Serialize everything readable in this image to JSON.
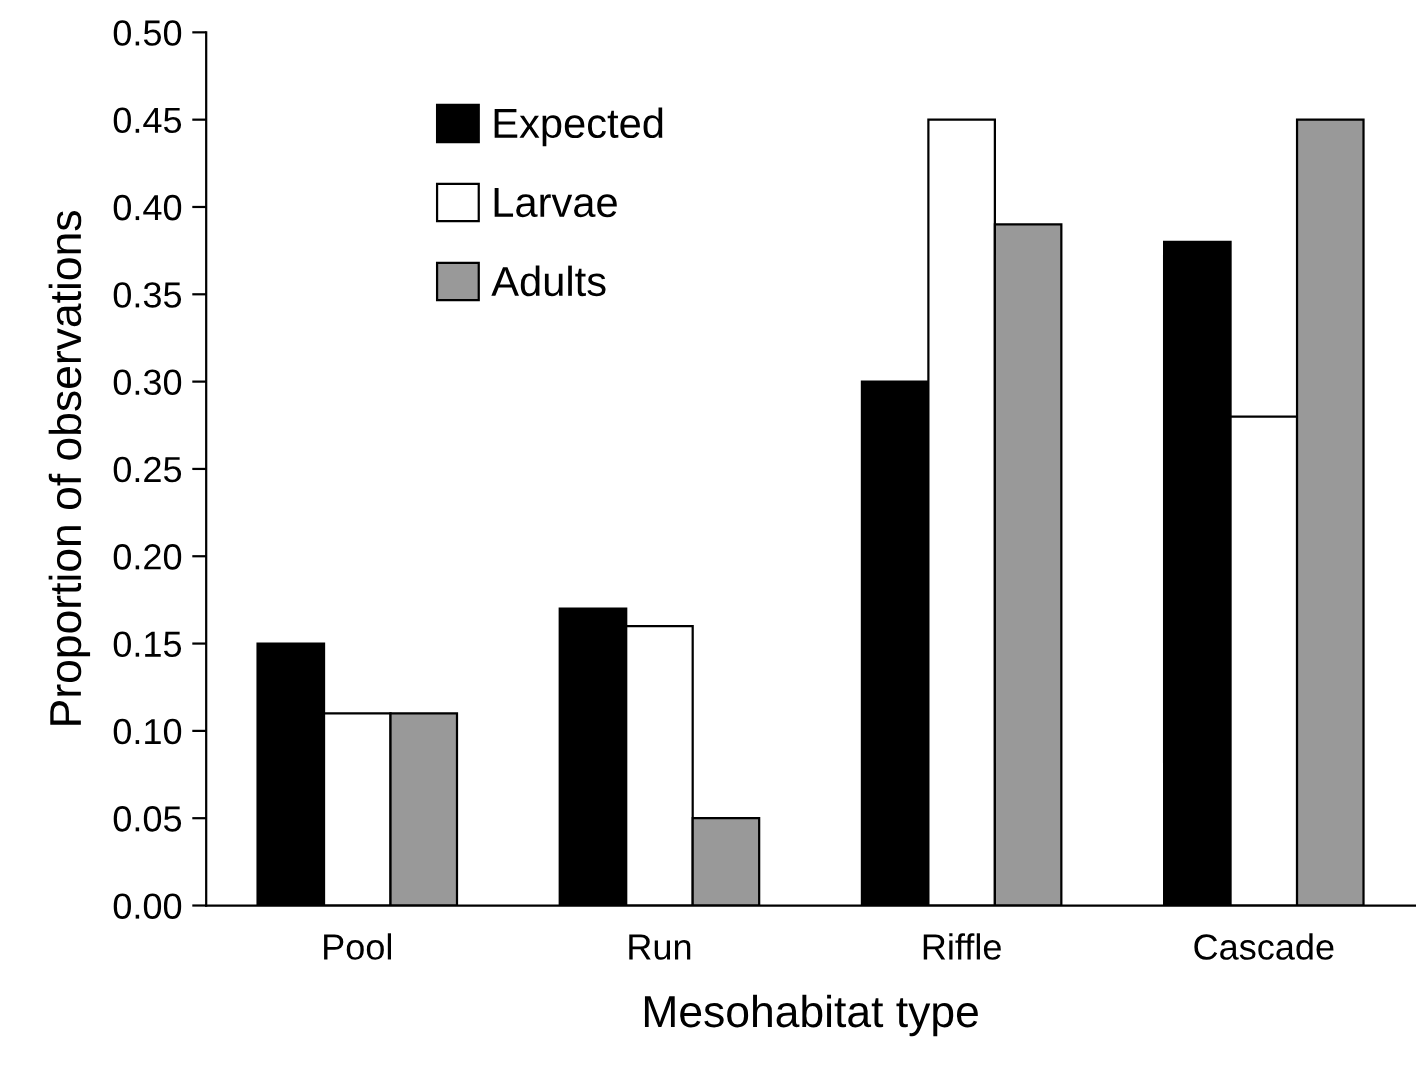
{
  "chart_data": {
    "type": "bar",
    "xlabel": "Mesohabitat type",
    "ylabel": "Proportion of observations",
    "categories": [
      "Pool",
      "Run",
      "Riffle",
      "Cascade"
    ],
    "series": [
      {
        "name": "Expected",
        "color": "#000000",
        "values": [
          0.15,
          0.17,
          0.3,
          0.38
        ]
      },
      {
        "name": "Larvae",
        "color": "#ffffff",
        "values": [
          0.11,
          0.16,
          0.45,
          0.28
        ]
      },
      {
        "name": "Adults",
        "color": "#999999",
        "values": [
          0.11,
          0.05,
          0.39,
          0.45
        ]
      }
    ],
    "ylim": [
      0,
      0.5
    ],
    "yticks": [
      {
        "value": 0,
        "label": "0.00"
      },
      {
        "value": 0.05,
        "label": "0.05"
      },
      {
        "value": 0.1,
        "label": "0.10"
      },
      {
        "value": 0.15,
        "label": "0.15"
      },
      {
        "value": 0.2,
        "label": "0.20"
      },
      {
        "value": 0.25,
        "label": "0.25"
      },
      {
        "value": 0.3,
        "label": "0.30"
      },
      {
        "value": 0.35,
        "label": "0.35"
      },
      {
        "value": 0.4,
        "label": "0.40"
      },
      {
        "value": 0.45,
        "label": "0.45"
      },
      {
        "value": 0.5,
        "label": "0.50"
      }
    ],
    "grid": false,
    "legend": "top left"
  }
}
